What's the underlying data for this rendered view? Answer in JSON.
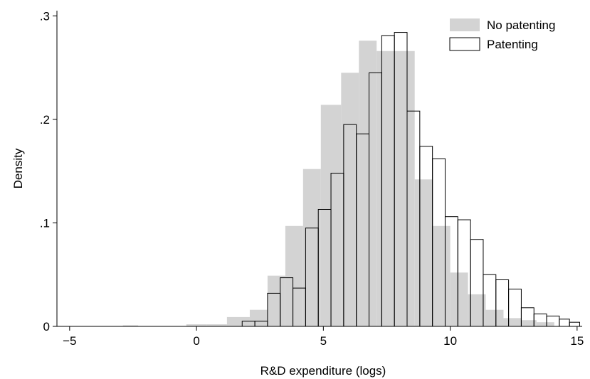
{
  "chart_data": {
    "type": "bar",
    "histogram": true,
    "xlabel": "R&D expenditure (logs)",
    "ylabel": "Density",
    "xlim": [
      -5.5,
      15.2
    ],
    "ylim": [
      0,
      0.305
    ],
    "x_ticks": [
      {
        "value": -5,
        "label": "−5"
      },
      {
        "value": 0,
        "label": "0"
      },
      {
        "value": 5,
        "label": "5"
      },
      {
        "value": 10,
        "label": "10"
      },
      {
        "value": 15,
        "label": "15"
      }
    ],
    "y_ticks": [
      {
        "value": 0,
        "label": "0"
      },
      {
        "value": 0.1,
        "label": ".1"
      },
      {
        "value": 0.2,
        "label": ".2"
      },
      {
        "value": 0.3,
        "label": ".3"
      }
    ],
    "grid": false,
    "legend_position": "top-right",
    "series": [
      {
        "name": "No patenting",
        "style": "filled",
        "color": "#d3d3d3",
        "bins": [
          {
            "x0": -2.9,
            "x1": -2.3,
            "value": 0.001
          },
          {
            "x0": -0.4,
            "x1": 0.4,
            "value": 0.002
          },
          {
            "x0": 0.4,
            "x1": 1.2,
            "value": 0.002
          },
          {
            "x0": 1.2,
            "x1": 2.1,
            "value": 0.009
          },
          {
            "x0": 2.1,
            "x1": 2.8,
            "value": 0.016
          },
          {
            "x0": 2.8,
            "x1": 3.5,
            "value": 0.049
          },
          {
            "x0": 3.5,
            "x1": 4.2,
            "value": 0.097
          },
          {
            "x0": 4.2,
            "x1": 4.9,
            "value": 0.152
          },
          {
            "x0": 4.9,
            "x1": 5.7,
            "value": 0.214
          },
          {
            "x0": 5.7,
            "x1": 6.4,
            "value": 0.245
          },
          {
            "x0": 6.4,
            "x1": 7.1,
            "value": 0.276
          },
          {
            "x0": 7.1,
            "x1": 7.8,
            "value": 0.266
          },
          {
            "x0": 7.8,
            "x1": 8.6,
            "value": 0.266
          },
          {
            "x0": 8.6,
            "x1": 9.3,
            "value": 0.142
          },
          {
            "x0": 9.3,
            "x1": 10.0,
            "value": 0.097
          },
          {
            "x0": 10.0,
            "x1": 10.7,
            "value": 0.052
          },
          {
            "x0": 10.7,
            "x1": 11.4,
            "value": 0.031
          },
          {
            "x0": 11.4,
            "x1": 12.1,
            "value": 0.016
          },
          {
            "x0": 12.1,
            "x1": 12.8,
            "value": 0.008
          },
          {
            "x0": 12.8,
            "x1": 13.4,
            "value": 0.006
          },
          {
            "x0": 13.4,
            "x1": 14.1,
            "value": 0.004
          }
        ]
      },
      {
        "name": "Patenting",
        "style": "outline",
        "color": "#000000",
        "bins": [
          {
            "x0": 1.8,
            "x1": 2.3,
            "value": 0.005
          },
          {
            "x0": 2.3,
            "x1": 2.8,
            "value": 0.005
          },
          {
            "x0": 2.8,
            "x1": 3.3,
            "value": 0.032
          },
          {
            "x0": 3.3,
            "x1": 3.8,
            "value": 0.047
          },
          {
            "x0": 3.8,
            "x1": 4.3,
            "value": 0.037
          },
          {
            "x0": 4.3,
            "x1": 4.8,
            "value": 0.095
          },
          {
            "x0": 4.8,
            "x1": 5.3,
            "value": 0.113
          },
          {
            "x0": 5.3,
            "x1": 5.8,
            "value": 0.148
          },
          {
            "x0": 5.8,
            "x1": 6.3,
            "value": 0.195
          },
          {
            "x0": 6.3,
            "x1": 6.8,
            "value": 0.186
          },
          {
            "x0": 6.8,
            "x1": 7.3,
            "value": 0.245
          },
          {
            "x0": 7.3,
            "x1": 7.8,
            "value": 0.281
          },
          {
            "x0": 7.8,
            "x1": 8.3,
            "value": 0.284
          },
          {
            "x0": 8.3,
            "x1": 8.8,
            "value": 0.208
          },
          {
            "x0": 8.8,
            "x1": 9.3,
            "value": 0.174
          },
          {
            "x0": 9.3,
            "x1": 9.8,
            "value": 0.162
          },
          {
            "x0": 9.8,
            "x1": 10.3,
            "value": 0.106
          },
          {
            "x0": 10.3,
            "x1": 10.8,
            "value": 0.103
          },
          {
            "x0": 10.8,
            "x1": 11.3,
            "value": 0.084
          },
          {
            "x0": 11.3,
            "x1": 11.8,
            "value": 0.05
          },
          {
            "x0": 11.8,
            "x1": 12.3,
            "value": 0.045
          },
          {
            "x0": 12.3,
            "x1": 12.8,
            "value": 0.036
          },
          {
            "x0": 12.8,
            "x1": 13.3,
            "value": 0.018
          },
          {
            "x0": 13.3,
            "x1": 13.8,
            "value": 0.012
          },
          {
            "x0": 13.8,
            "x1": 14.3,
            "value": 0.01
          },
          {
            "x0": 14.3,
            "x1": 14.7,
            "value": 0.007
          },
          {
            "x0": 14.7,
            "x1": 15.1,
            "value": 0.004
          }
        ]
      }
    ]
  }
}
